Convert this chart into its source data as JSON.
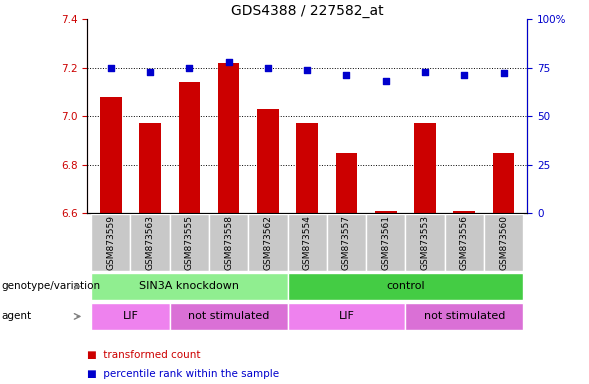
{
  "title": "GDS4388 / 227582_at",
  "samples": [
    "GSM873559",
    "GSM873563",
    "GSM873555",
    "GSM873558",
    "GSM873562",
    "GSM873554",
    "GSM873557",
    "GSM873561",
    "GSM873553",
    "GSM873556",
    "GSM873560"
  ],
  "bar_values": [
    7.08,
    6.97,
    7.14,
    7.22,
    7.03,
    6.97,
    6.85,
    6.61,
    6.97,
    6.61,
    6.85
  ],
  "dot_values": [
    75,
    73,
    75,
    78,
    75,
    74,
    71,
    68,
    73,
    71,
    72
  ],
  "ylim_left": [
    6.6,
    7.4
  ],
  "ylim_right": [
    0,
    100
  ],
  "yticks_left": [
    6.6,
    6.8,
    7.0,
    7.2,
    7.4
  ],
  "yticks_right": [
    0,
    25,
    50,
    75,
    100
  ],
  "ytick_labels_right": [
    "0",
    "25",
    "50",
    "75",
    "100%"
  ],
  "bar_color": "#cc0000",
  "dot_color": "#0000cc",
  "bar_bottom": 6.6,
  "grid_values": [
    6.8,
    7.0,
    7.2
  ],
  "genotype_groups": [
    {
      "label": "SIN3A knockdown",
      "start": 0,
      "end": 5,
      "color": "#90ee90"
    },
    {
      "label": "control",
      "start": 5,
      "end": 11,
      "color": "#44cc44"
    }
  ],
  "agent_groups": [
    {
      "label": "LIF",
      "start": 0,
      "end": 2,
      "color": "#ee82ee"
    },
    {
      "label": "not stimulated",
      "start": 2,
      "end": 5,
      "color": "#da70d6"
    },
    {
      "label": "LIF",
      "start": 5,
      "end": 8,
      "color": "#ee82ee"
    },
    {
      "label": "not stimulated",
      "start": 8,
      "end": 11,
      "color": "#da70d6"
    }
  ],
  "legend_items": [
    {
      "color": "#cc0000",
      "label": "transformed count"
    },
    {
      "color": "#0000cc",
      "label": "percentile rank within the sample"
    }
  ],
  "row_labels": [
    "genotype/variation",
    "agent"
  ],
  "title_fontsize": 10,
  "tick_fontsize": 7.5,
  "sample_fontsize": 6.5,
  "label_fontsize": 8.5,
  "annot_fontsize": 8
}
